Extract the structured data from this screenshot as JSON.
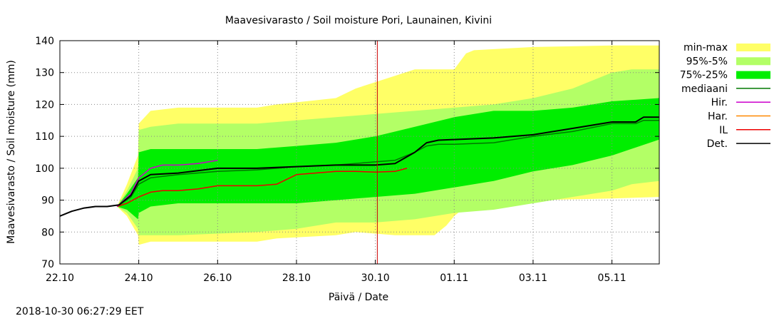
{
  "chart_data": {
    "type": "area",
    "title": "Maavesivarasto / Soil moisture   Pori, Launainen, Kivini",
    "xlabel": "Päivä / Date",
    "ylabel": "Maavesivarasto / Soil moisture (mm)",
    "ylim": [
      70,
      140
    ],
    "yticks": [
      70,
      80,
      90,
      100,
      110,
      120,
      130,
      140
    ],
    "xlim": [
      0,
      15.2
    ],
    "xticks": [
      {
        "pos": 0,
        "label": "22.10"
      },
      {
        "pos": 2,
        "label": "24.10"
      },
      {
        "pos": 4,
        "label": "26.10"
      },
      {
        "pos": 6,
        "label": "28.10"
      },
      {
        "pos": 8,
        "label": "30.10"
      },
      {
        "pos": 10,
        "label": "01.11"
      },
      {
        "pos": 12,
        "label": "03.11"
      },
      {
        "pos": 14,
        "label": "05.11"
      }
    ],
    "current_time_x": 8.05,
    "grid": true,
    "legend_position": "right",
    "colors": {
      "minmax": "#ffff66",
      "p95_5": "#b3ff66",
      "p75_25": "#00ee00",
      "median": "#007700",
      "hir": "#cc00cc",
      "har": "#ff8800",
      "il": "#ee0000",
      "det": "#000000",
      "now_line": "#cc0000"
    },
    "legend": [
      {
        "key": "minmax",
        "label": "min-max",
        "kind": "band"
      },
      {
        "key": "p95_5",
        "label": "95%-5%",
        "kind": "band"
      },
      {
        "key": "p75_25",
        "label": "75%-25%",
        "kind": "band"
      },
      {
        "key": "median",
        "label": "mediaani",
        "kind": "line"
      },
      {
        "key": "hir",
        "label": "Hir.",
        "kind": "line"
      },
      {
        "key": "har",
        "label": "Har.",
        "kind": "line"
      },
      {
        "key": "il",
        "label": "IL",
        "kind": "line"
      },
      {
        "key": "det",
        "label": "Det.",
        "kind": "line"
      }
    ],
    "bands": {
      "minmax": {
        "x": [
          1.45,
          1.7,
          1.98,
          2.0,
          2.3,
          3.0,
          5.0,
          5.5,
          7.0,
          7.5,
          8.5,
          9.0,
          9.5,
          9.8,
          10.0,
          10.3,
          10.5,
          12.0,
          14.0,
          15.2
        ],
        "upper": [
          88,
          95,
          104,
          114,
          118,
          119,
          119,
          120,
          122,
          125,
          129,
          131,
          131,
          131,
          131,
          136,
          137,
          138,
          138.5,
          138.5
        ],
        "lower": [
          88,
          85,
          79,
          76,
          77,
          77,
          77,
          78,
          79,
          80,
          79,
          79,
          79,
          82,
          85,
          88,
          89,
          90,
          90.5,
          91
        ]
      },
      "p95_5": {
        "x": [
          1.45,
          1.7,
          1.98,
          2.0,
          2.3,
          3.0,
          5.0,
          6.0,
          7.0,
          8.0,
          9.0,
          10.0,
          11.0,
          12.0,
          13.0,
          14.0,
          14.5,
          15.2
        ],
        "upper": [
          88,
          93,
          100,
          112,
          113,
          114,
          114,
          115,
          116,
          117,
          118,
          119,
          120,
          122,
          125,
          130,
          131,
          131
        ],
        "lower": [
          88,
          86,
          81,
          79,
          79,
          79,
          80,
          81,
          83,
          83,
          84,
          86,
          87,
          89,
          91,
          93,
          95,
          96
        ]
      },
      "p75_25": {
        "x": [
          1.45,
          1.7,
          1.98,
          2.0,
          2.3,
          3.0,
          4.0,
          5.0,
          6.0,
          7.0,
          8.0,
          9.0,
          10.0,
          11.0,
          12.0,
          13.0,
          14.0,
          15.2
        ],
        "upper": [
          88,
          92,
          97,
          105,
          106,
          106,
          106,
          106,
          107,
          108,
          110,
          113,
          116,
          118,
          118,
          119,
          121,
          122
        ],
        "lower": [
          88,
          87,
          84,
          86,
          88,
          89,
          89,
          89,
          89,
          90,
          91,
          92,
          94,
          96,
          99,
          101,
          104,
          109
        ]
      }
    },
    "series": [
      {
        "key": "det",
        "name": "Det.",
        "x": [
          0,
          0.3,
          0.6,
          0.9,
          1.2,
          1.5,
          1.8,
          2.0,
          2.3,
          3.0,
          4.0,
          5.0,
          6.0,
          7.0,
          8.0,
          8.5,
          9.0,
          9.3,
          9.6,
          10.0,
          11.0,
          12.0,
          13.0,
          14.0,
          14.6,
          14.8,
          15.2
        ],
        "y": [
          85,
          86.5,
          87.5,
          88,
          88,
          88.5,
          91.5,
          96,
          98,
          98.5,
          100,
          100,
          100.5,
          101,
          101,
          101.5,
          105,
          108,
          108.8,
          109,
          109.5,
          110.5,
          112.5,
          114.5,
          114.5,
          116,
          116
        ]
      },
      {
        "key": "median",
        "name": "mediaani",
        "x": [
          1.45,
          1.8,
          2.0,
          2.3,
          3.0,
          4.0,
          5.0,
          6.0,
          7.0,
          8.0,
          8.5,
          9.0,
          9.3,
          9.6,
          10.0,
          11.0,
          12.0,
          13.0,
          14.0,
          14.6,
          14.8,
          15.2
        ],
        "y": [
          88,
          91,
          95,
          97,
          98,
          99,
          99.5,
          100.5,
          101,
          102,
          102.5,
          105,
          107,
          107.5,
          107.5,
          108,
          110,
          111.5,
          114,
          114,
          115,
          115
        ]
      },
      {
        "key": "hir",
        "name": "Hir.",
        "x": [
          1.45,
          1.8,
          2.0,
          2.3,
          2.6,
          3.0,
          3.5,
          4.0
        ],
        "y": [
          88,
          92,
          97,
          100,
          101,
          101,
          101.5,
          102.5
        ]
      },
      {
        "key": "il",
        "name": "IL",
        "x": [
          1.45,
          1.7,
          2.0,
          2.3,
          2.6,
          3.0,
          3.5,
          4.0,
          5.0,
          5.5,
          6.0,
          7.0,
          7.5,
          8.0,
          8.5,
          8.8
        ],
        "y": [
          88,
          89,
          91,
          92.5,
          93,
          93,
          93.5,
          94.5,
          94.5,
          95,
          98,
          99,
          99,
          98.8,
          99,
          100
        ]
      }
    ]
  },
  "timestamp": "2018-10-30 06:27:29 EET"
}
